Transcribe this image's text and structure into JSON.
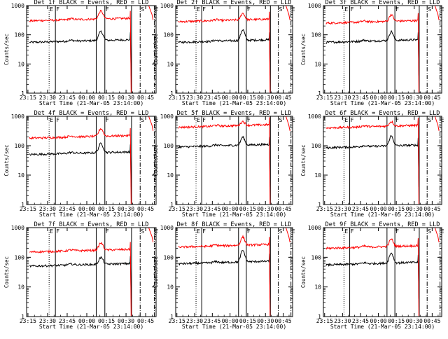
{
  "chart_data": [
    {
      "type": "line",
      "title": "Det 1f BLACK = Events, RED = LLD",
      "xlabel": "Start Time (21-Mar-05 23:14:00)",
      "ylabel": "Counts/sec",
      "yscale": "log",
      "ylim": [
        1,
        1000
      ],
      "xlim": [
        23.233,
        24.883
      ],
      "x_tick_labels": [
        "23:15",
        "23:30",
        "23:45",
        "00:00",
        "00:15",
        "00:30",
        "00:45"
      ],
      "y_tick_labels": [
        "1",
        "10",
        "100",
        "1000"
      ],
      "series": [
        {
          "name": "Events",
          "color": "#000000",
          "base": 55,
          "spike": 120
        },
        {
          "name": "LLD",
          "color": "#ff0000",
          "base": 300,
          "spike": 600
        }
      ],
      "markers": [
        {
          "label": "E",
          "style": "dotted"
        },
        {
          "label": "F",
          "style": "solid"
        },
        {
          "label": "F",
          "style": "solid"
        },
        {
          "label": "S",
          "style": "dashdot"
        },
        {
          "label": "E",
          "style": "dashdot"
        }
      ]
    },
    {
      "type": "line",
      "title": "Det 2f BLACK = Events, RED = LLD",
      "xlabel": "Start Time (21-Mar-05 23:14:00)",
      "ylabel": "Counts/sec",
      "yscale": "log",
      "ylim": [
        1,
        1000
      ],
      "xlim": [
        23.233,
        24.883
      ],
      "x_tick_labels": [
        "23:15",
        "23:30",
        "23:45",
        "00:00",
        "00:15",
        "00:30",
        "00:45"
      ],
      "y_tick_labels": [
        "1",
        "10",
        "100",
        "1000"
      ],
      "series": [
        {
          "name": "Events",
          "color": "#000000",
          "base": 55,
          "spike": 140
        },
        {
          "name": "LLD",
          "color": "#ff0000",
          "base": 280,
          "spike": 500
        }
      ],
      "markers": [
        {
          "label": "E",
          "style": "dotted"
        },
        {
          "label": "F",
          "style": "solid"
        },
        {
          "label": "F",
          "style": "solid"
        },
        {
          "label": "S",
          "style": "dashdot"
        },
        {
          "label": "E",
          "style": "dashdot"
        }
      ]
    },
    {
      "type": "line",
      "title": "Det 3f BLACK = Events, RED = LLD",
      "xlabel": "Start Time (21-Mar-05 23:14:00)",
      "ylabel": "Counts/sec",
      "yscale": "log",
      "ylim": [
        1,
        1000
      ],
      "xlim": [
        23.233,
        24.883
      ],
      "x_tick_labels": [
        "23:15",
        "23:30",
        "23:45",
        "00:00",
        "00:15",
        "00:30",
        "00:45"
      ],
      "y_tick_labels": [
        "1",
        "10",
        "100",
        "1000"
      ],
      "series": [
        {
          "name": "Events",
          "color": "#000000",
          "base": 55,
          "spike": 120
        },
        {
          "name": "LLD",
          "color": "#ff0000",
          "base": 250,
          "spike": 450
        }
      ],
      "markers": [
        {
          "label": "E",
          "style": "dotted"
        },
        {
          "label": "F",
          "style": "solid"
        },
        {
          "label": "F",
          "style": "solid"
        },
        {
          "label": "S",
          "style": "dashdot"
        },
        {
          "label": "E",
          "style": "dashdot"
        }
      ]
    },
    {
      "type": "line",
      "title": "Det 4f BLACK = Events, RED = LLD",
      "xlabel": "Start Time (21-Mar-05 23:14:00)",
      "ylabel": "Counts/sec",
      "yscale": "log",
      "ylim": [
        1,
        1000
      ],
      "xlim": [
        23.233,
        24.883
      ],
      "x_tick_labels": [
        "23:15",
        "23:30",
        "23:45",
        "00:00",
        "00:15",
        "00:30",
        "00:45"
      ],
      "y_tick_labels": [
        "1",
        "10",
        "100",
        "1000"
      ],
      "series": [
        {
          "name": "Events",
          "color": "#000000",
          "base": 50,
          "spike": 110
        },
        {
          "name": "LLD",
          "color": "#ff0000",
          "base": 180,
          "spike": 350
        }
      ],
      "markers": [
        {
          "label": "E",
          "style": "dotted"
        },
        {
          "label": "F",
          "style": "solid"
        },
        {
          "label": "F",
          "style": "solid"
        },
        {
          "label": "S",
          "style": "dashdot"
        },
        {
          "label": "E",
          "style": "dashdot"
        }
      ]
    },
    {
      "type": "line",
      "title": "Det 5f BLACK = Events, RED = LLD",
      "xlabel": "Start Time (21-Mar-05 23:14:00)",
      "ylabel": "Counts/sec",
      "yscale": "log",
      "ylim": [
        1,
        1000
      ],
      "xlim": [
        23.233,
        24.883
      ],
      "x_tick_labels": [
        "23:15",
        "23:30",
        "23:45",
        "00:00",
        "00:15",
        "00:30",
        "00:45"
      ],
      "y_tick_labels": [
        "1",
        "10",
        "100",
        "1000"
      ],
      "series": [
        {
          "name": "Events",
          "color": "#000000",
          "base": 90,
          "spike": 180
        },
        {
          "name": "LLD",
          "color": "#ff0000",
          "base": 420,
          "spike": 600
        }
      ],
      "markers": [
        {
          "label": "E",
          "style": "dotted"
        },
        {
          "label": "F",
          "style": "solid"
        },
        {
          "label": "F",
          "style": "solid"
        },
        {
          "label": "S",
          "style": "dashdot"
        },
        {
          "label": "E",
          "style": "dashdot"
        }
      ]
    },
    {
      "type": "line",
      "title": "Det 6f BLACK = Events, RED = LLD",
      "xlabel": "Start Time (21-Mar-05 23:14:00)",
      "ylabel": "Counts/sec",
      "yscale": "log",
      "ylim": [
        1,
        1000
      ],
      "xlim": [
        23.233,
        24.883
      ],
      "x_tick_labels": [
        "23:15",
        "23:30",
        "23:45",
        "00:00",
        "00:15",
        "00:30",
        "00:45"
      ],
      "y_tick_labels": [
        "1",
        "10",
        "100",
        "1000"
      ],
      "series": [
        {
          "name": "Events",
          "color": "#000000",
          "base": 85,
          "spike": 200
        },
        {
          "name": "LLD",
          "color": "#ff0000",
          "base": 400,
          "spike": 600
        }
      ],
      "markers": [
        {
          "label": "E",
          "style": "dotted"
        },
        {
          "label": "F",
          "style": "solid"
        },
        {
          "label": "F",
          "style": "solid"
        },
        {
          "label": "S",
          "style": "dashdot"
        },
        {
          "label": "E",
          "style": "dashdot"
        }
      ]
    },
    {
      "type": "line",
      "title": "Det 7f BLACK = Events, RED = LLD",
      "xlabel": "Start Time (21-Mar-05 23:14:00)",
      "ylabel": "Counts/sec",
      "yscale": "log",
      "ylim": [
        1,
        1000
      ],
      "xlim": [
        23.233,
        24.883
      ],
      "x_tick_labels": [
        "23:15",
        "23:30",
        "23:45",
        "00:00",
        "00:15",
        "00:30",
        "00:45"
      ],
      "y_tick_labels": [
        "1",
        "10",
        "100",
        "1000"
      ],
      "series": [
        {
          "name": "Events",
          "color": "#000000",
          "base": 50,
          "spike": 90
        },
        {
          "name": "LLD",
          "color": "#ff0000",
          "base": 150,
          "spike": 280
        }
      ],
      "markers": [
        {
          "label": "E",
          "style": "dotted"
        },
        {
          "label": "F",
          "style": "solid"
        },
        {
          "label": "F",
          "style": "solid"
        },
        {
          "label": "S",
          "style": "dashdot"
        },
        {
          "label": "E",
          "style": "dashdot"
        }
      ]
    },
    {
      "type": "line",
      "title": "Det 8f BLACK = Events, RED = LLD",
      "xlabel": "Start Time (21-Mar-05 23:14:00)",
      "ylabel": "Counts/sec",
      "yscale": "log",
      "ylim": [
        1,
        1000
      ],
      "xlim": [
        23.233,
        24.883
      ],
      "x_tick_labels": [
        "23:15",
        "23:30",
        "23:45",
        "00:00",
        "00:15",
        "00:30",
        "00:45"
      ],
      "y_tick_labels": [
        "1",
        "10",
        "100",
        "1000"
      ],
      "series": [
        {
          "name": "Events",
          "color": "#000000",
          "base": 60,
          "spike": 160
        },
        {
          "name": "LLD",
          "color": "#ff0000",
          "base": 220,
          "spike": 450
        }
      ],
      "markers": [
        {
          "label": "E",
          "style": "dotted"
        },
        {
          "label": "F",
          "style": "solid"
        },
        {
          "label": "F",
          "style": "solid"
        },
        {
          "label": "S",
          "style": "dashdot"
        },
        {
          "label": "E",
          "style": "dashdot"
        }
      ]
    },
    {
      "type": "line",
      "title": "Det 9f BLACK = Events, RED = LLD",
      "xlabel": "Start Time (21-Mar-05 23:14:00)",
      "ylabel": "Counts/sec",
      "yscale": "log",
      "ylim": [
        1,
        1000
      ],
      "xlim": [
        23.233,
        24.883
      ],
      "x_tick_labels": [
        "23:15",
        "23:30",
        "23:45",
        "00:00",
        "00:15",
        "00:30",
        "00:45"
      ],
      "y_tick_labels": [
        "1",
        "10",
        "100",
        "1000"
      ],
      "series": [
        {
          "name": "Events",
          "color": "#000000",
          "base": 55,
          "spike": 130
        },
        {
          "name": "LLD",
          "color": "#ff0000",
          "base": 200,
          "spike": 380
        }
      ],
      "markers": [
        {
          "label": "E",
          "style": "dotted"
        },
        {
          "label": "F",
          "style": "solid"
        },
        {
          "label": "F",
          "style": "solid"
        },
        {
          "label": "S",
          "style": "dashdot"
        },
        {
          "label": "E",
          "style": "dashdot"
        }
      ]
    }
  ]
}
